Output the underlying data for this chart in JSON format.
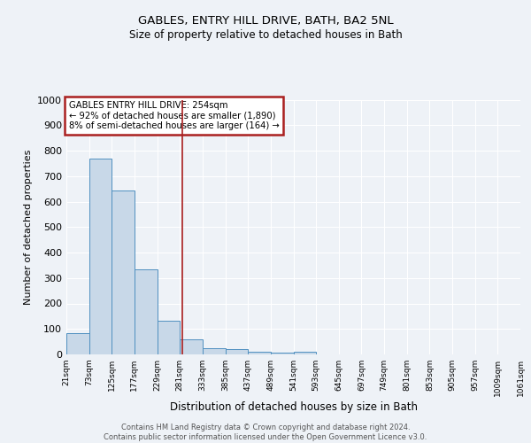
{
  "title": "GABLES, ENTRY HILL DRIVE, BATH, BA2 5NL",
  "subtitle": "Size of property relative to detached houses in Bath",
  "xlabel": "Distribution of detached houses by size in Bath",
  "ylabel": "Number of detached properties",
  "bar_values": [
    83,
    770,
    643,
    335,
    133,
    60,
    25,
    20,
    10,
    8,
    10,
    0,
    0,
    0,
    0,
    0,
    0,
    0,
    0,
    0
  ],
  "bar_labels": [
    "21sqm",
    "73sqm",
    "125sqm",
    "177sqm",
    "229sqm",
    "281sqm",
    "333sqm",
    "385sqm",
    "437sqm",
    "489sqm",
    "541sqm",
    "593sqm",
    "645sqm",
    "697sqm",
    "749sqm",
    "801sqm",
    "853sqm",
    "905sqm",
    "957sqm",
    "1009sqm",
    "1061sqm"
  ],
  "bar_color": "#c8d8e8",
  "bar_edge_color": "#5090c0",
  "vline_x": 4.62,
  "vline_color": "#aa2020",
  "annotation_text": "GABLES ENTRY HILL DRIVE: 254sqm\n← 92% of detached houses are smaller (1,890)\n8% of semi-detached houses are larger (164) →",
  "annotation_box_color": "#aa2020",
  "ylim": [
    0,
    1000
  ],
  "yticks": [
    0,
    100,
    200,
    300,
    400,
    500,
    600,
    700,
    800,
    900,
    1000
  ],
  "footer_text": "Contains HM Land Registry data © Crown copyright and database right 2024.\nContains public sector information licensed under the Open Government Licence v3.0.",
  "background_color": "#eef2f7",
  "grid_color": "#ffffff"
}
